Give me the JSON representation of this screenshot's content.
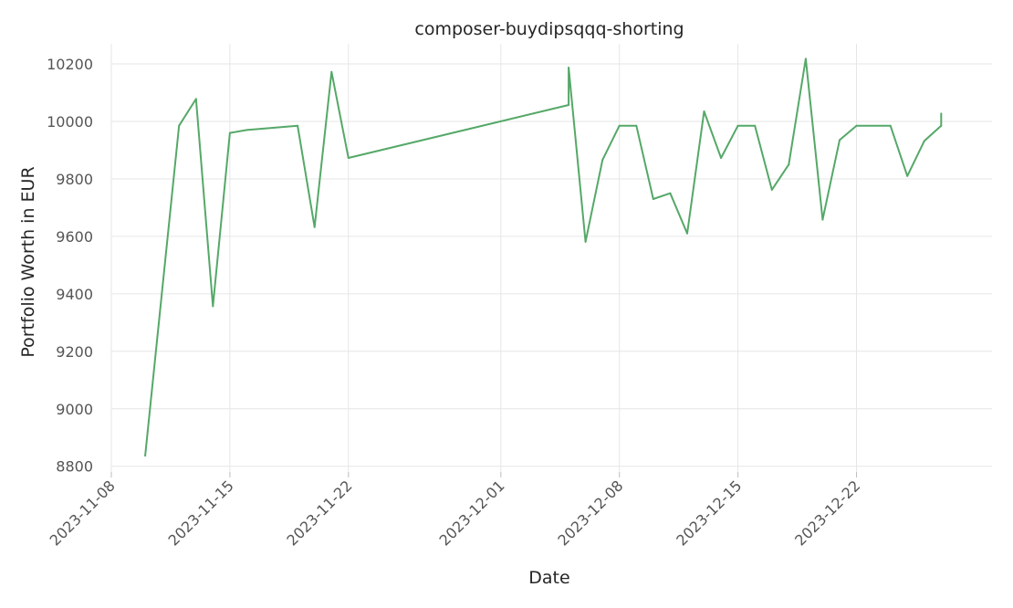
{
  "chart_data": {
    "type": "line",
    "title": "composer-buydipsqqq-shorting",
    "xlabel": "Date",
    "ylabel": "Portfolio Worth in EUR",
    "x_type": "date",
    "xlim": [
      "2023-11-08",
      "2023-12-30"
    ],
    "ylim": [
      8780,
      10270
    ],
    "grid": true,
    "line_color": "#55a868",
    "x_ticks": [
      "2023-11-08",
      "2023-11-15",
      "2023-11-22",
      "2023-12-01",
      "2023-12-08",
      "2023-12-15",
      "2023-12-22"
    ],
    "y_ticks": [
      8800,
      9000,
      9200,
      9400,
      9600,
      9800,
      10000,
      10200
    ],
    "series": [
      {
        "points": [
          [
            "2023-11-10",
            8837
          ],
          [
            "2023-11-12",
            9985
          ],
          [
            "2023-11-13",
            10078
          ],
          [
            "2023-11-14",
            9357
          ],
          [
            "2023-11-15",
            9960
          ],
          [
            "2023-11-16",
            9970
          ],
          [
            "2023-11-19",
            9985
          ],
          [
            "2023-11-20",
            9632
          ],
          [
            "2023-11-21",
            10172
          ],
          [
            "2023-11-22",
            9873
          ],
          [
            "2023-12-05",
            10057
          ],
          [
            "2023-12-05",
            10187
          ],
          [
            "2023-12-06",
            9581
          ],
          [
            "2023-12-07",
            9866
          ],
          [
            "2023-12-08",
            9985
          ],
          [
            "2023-12-09",
            9985
          ],
          [
            "2023-12-10",
            9730
          ],
          [
            "2023-12-11",
            9750
          ],
          [
            "2023-12-12",
            9610
          ],
          [
            "2023-12-13",
            10035
          ],
          [
            "2023-12-14",
            9873
          ],
          [
            "2023-12-15",
            9985
          ],
          [
            "2023-12-16",
            9985
          ],
          [
            "2023-12-17",
            9762
          ],
          [
            "2023-12-18",
            9850
          ],
          [
            "2023-12-19",
            10218
          ],
          [
            "2023-12-20",
            9658
          ],
          [
            "2023-12-21",
            9935
          ],
          [
            "2023-12-22",
            9985
          ],
          [
            "2023-12-24",
            9985
          ],
          [
            "2023-12-25",
            9810
          ],
          [
            "2023-12-26",
            9932
          ],
          [
            "2023-12-27",
            9985
          ],
          [
            "2023-12-27",
            10027
          ]
        ]
      }
    ]
  }
}
